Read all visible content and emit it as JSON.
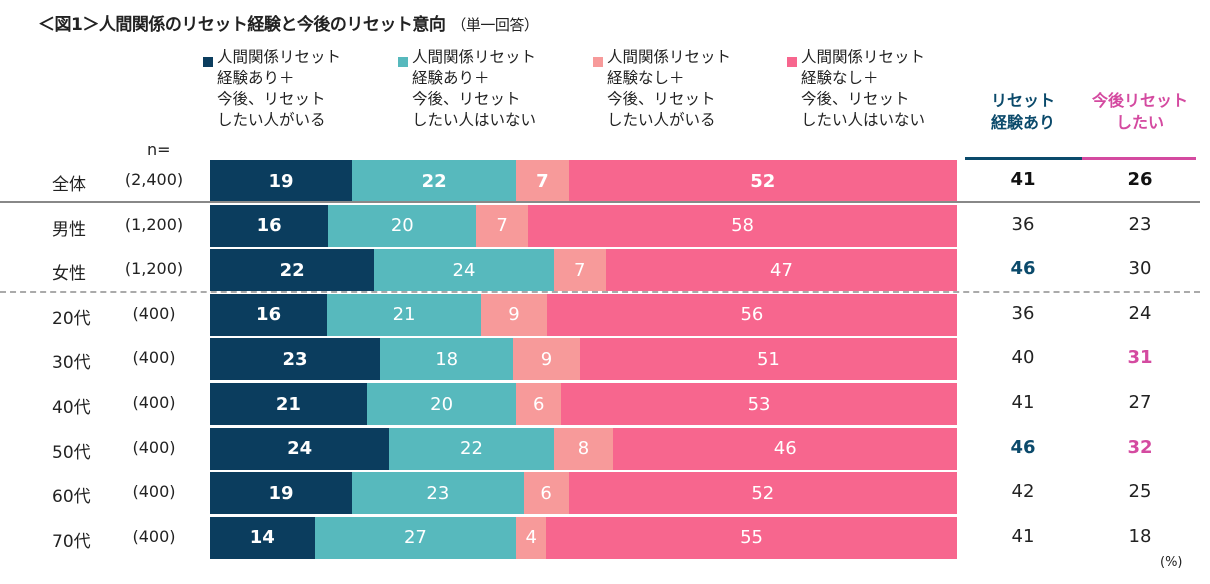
{
  "chart_data": {
    "type": "bar",
    "orientation": "horizontal-stacked-100",
    "title": "＜図1＞人間関係のリセット経験と今後のリセット意向",
    "subtitle": "（単一回答）",
    "n_label": "n=",
    "unit": "(%)",
    "series": [
      {
        "name": "人間関係リセット\n経験あり＋\n今後、リセット\nしたい人がいる",
        "color": "#0b3d5e"
      },
      {
        "name": "人間関係リセット\n経験あり＋\n今後、リセット\nしたい人はいない",
        "color": "#57b9bd"
      },
      {
        "name": "人間関係リセット\n経験なし＋\n今後、リセット\nしたい人がいる",
        "color": "#f79a9a"
      },
      {
        "name": "人間関係リセット\n経験なし＋\n今後、リセット\nしたい人はいない",
        "color": "#f7668e"
      }
    ],
    "summary_columns": [
      {
        "name": "リセット\n経験あり",
        "color": "#0b4a6b"
      },
      {
        "name": "今後リセット\nしたい",
        "color": "#d44aa0"
      }
    ],
    "rows": [
      {
        "group": "全体",
        "n": "(2,400)",
        "values": [
          19,
          22,
          7,
          52
        ],
        "summary": [
          41,
          26
        ],
        "highlight": [
          "total",
          "total"
        ]
      },
      {
        "group": "男性",
        "n": "(1,200)",
        "values": [
          16,
          20,
          7,
          58
        ],
        "summary": [
          36,
          23
        ],
        "highlight": [
          "",
          ""
        ]
      },
      {
        "group": "女性",
        "n": "(1,200)",
        "values": [
          22,
          24,
          7,
          47
        ],
        "summary": [
          46,
          30
        ],
        "highlight": [
          "navy",
          ""
        ]
      },
      {
        "group": "20代",
        "n": "(400)",
        "values": [
          16,
          21,
          9,
          56
        ],
        "summary": [
          36,
          24
        ],
        "highlight": [
          "",
          ""
        ]
      },
      {
        "group": "30代",
        "n": "(400)",
        "values": [
          23,
          18,
          9,
          51
        ],
        "summary": [
          40,
          31
        ],
        "highlight": [
          "",
          "pink"
        ]
      },
      {
        "group": "40代",
        "n": "(400)",
        "values": [
          21,
          20,
          6,
          53
        ],
        "summary": [
          41,
          27
        ],
        "highlight": [
          "",
          ""
        ]
      },
      {
        "group": "50代",
        "n": "(400)",
        "values": [
          24,
          22,
          8,
          46
        ],
        "summary": [
          46,
          32
        ],
        "highlight": [
          "navy",
          "pink"
        ]
      },
      {
        "group": "60代",
        "n": "(400)",
        "values": [
          19,
          23,
          6,
          52
        ],
        "summary": [
          42,
          25
        ],
        "highlight": [
          "",
          ""
        ]
      },
      {
        "group": "70代",
        "n": "(400)",
        "values": [
          14,
          27,
          4,
          55
        ],
        "summary": [
          41,
          18
        ],
        "highlight": [
          "",
          ""
        ]
      }
    ]
  }
}
